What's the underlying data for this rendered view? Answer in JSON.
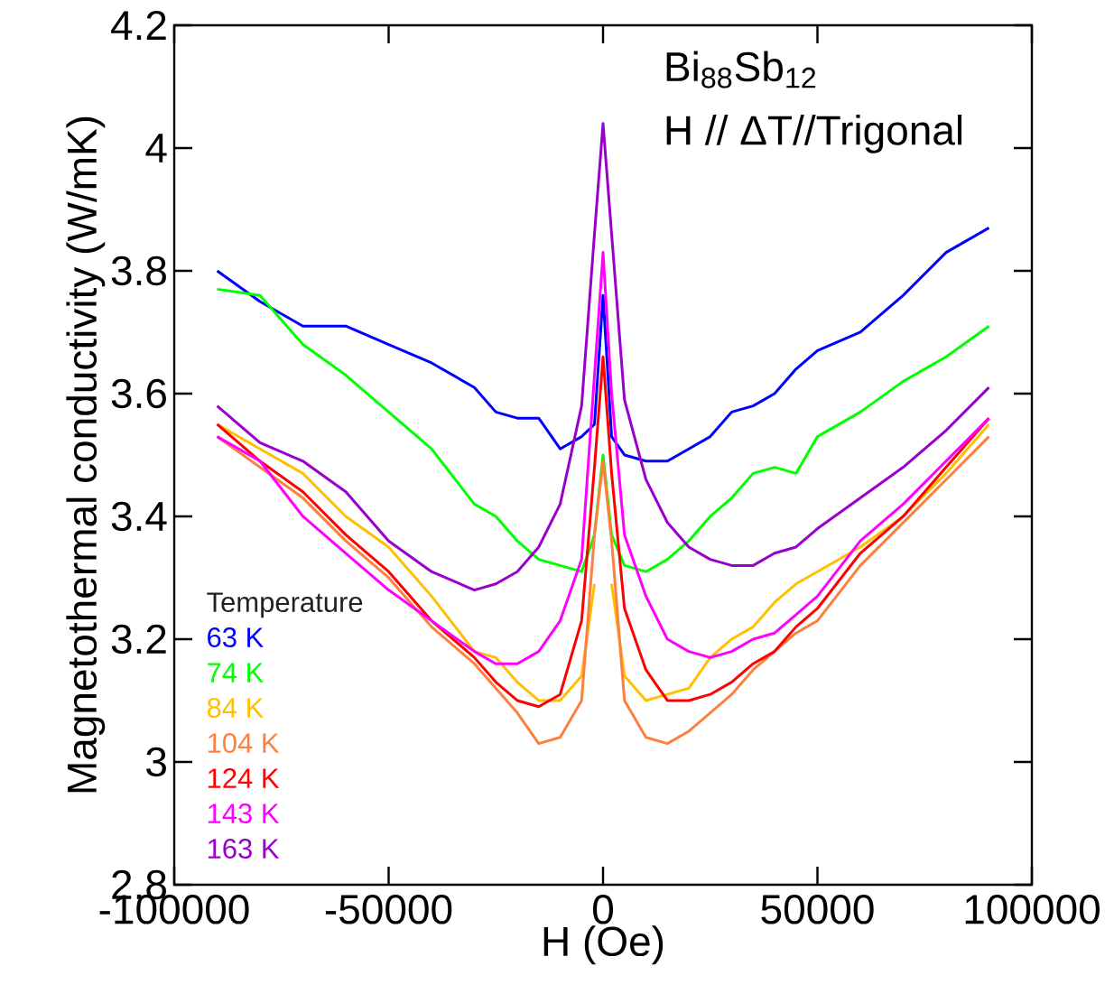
{
  "chart_data": {
    "type": "line",
    "xlabel": "H (Oe)",
    "ylabel": "Magnetothermal conductivity (W/mK)",
    "legend_title": "Temperature",
    "legend": "bottom left",
    "line_style": "solid",
    "annotations": [
      "Bi$_{88}$Sb$_{12}$",
      "H // ΔT//Trigonal"
    ],
    "xlim": [
      -100000,
      100000
    ],
    "xticks": [
      -100000,
      -50000,
      0,
      50000,
      100000
    ],
    "ylim": [
      2.8,
      4.2
    ],
    "yticks": [
      2.8,
      3,
      3.2,
      3.4,
      3.6,
      3.8,
      4,
      4.2
    ],
    "x": [
      -90000,
      -80000,
      -70000,
      -60000,
      -50000,
      -40000,
      -30000,
      -25000,
      -20000,
      -15000,
      -10000,
      -5000,
      -2000,
      0,
      2000,
      5000,
      10000,
      15000,
      20000,
      25000,
      30000,
      35000,
      40000,
      45000,
      50000,
      60000,
      70000,
      80000,
      90000
    ],
    "series": [
      {
        "name": "63 K",
        "color": "#0000ff",
        "values": [
          3.8,
          3.75,
          3.71,
          3.71,
          3.68,
          3.65,
          3.61,
          3.57,
          3.56,
          3.56,
          3.51,
          3.53,
          3.55,
          3.76,
          3.53,
          3.5,
          3.49,
          3.49,
          3.51,
          3.53,
          3.57,
          3.58,
          3.6,
          3.64,
          3.67,
          3.7,
          3.76,
          3.83,
          3.87
        ]
      },
      {
        "name": "74 K",
        "color": "#00ff00",
        "values": [
          3.77,
          3.76,
          3.68,
          3.63,
          3.57,
          3.51,
          3.42,
          3.4,
          3.36,
          3.33,
          3.32,
          3.31,
          3.37,
          3.5,
          3.37,
          3.32,
          3.31,
          3.33,
          3.36,
          3.4,
          3.43,
          3.47,
          3.48,
          3.47,
          3.53,
          3.57,
          3.62,
          3.66,
          3.71
        ]
      },
      {
        "name": "84 K",
        "color": "#ffc000",
        "values": [
          3.55,
          3.51,
          3.47,
          3.4,
          3.35,
          3.27,
          3.18,
          3.17,
          3.13,
          3.1,
          3.1,
          3.14,
          3.29,
          null,
          3.29,
          3.14,
          3.1,
          3.11,
          3.12,
          3.17,
          3.2,
          3.22,
          3.26,
          3.29,
          3.31,
          3.35,
          3.4,
          3.47,
          3.55
        ]
      },
      {
        "name": "104 K",
        "color": "#ff7f3f",
        "values": [
          3.53,
          3.48,
          3.43,
          3.36,
          3.3,
          3.22,
          3.16,
          3.12,
          3.08,
          3.03,
          3.04,
          3.1,
          3.37,
          3.49,
          3.36,
          3.1,
          3.04,
          3.03,
          3.05,
          3.08,
          3.11,
          3.15,
          3.18,
          3.21,
          3.23,
          3.32,
          3.39,
          3.46,
          3.53
        ]
      },
      {
        "name": "124 K",
        "color": "#ff0000",
        "values": [
          3.55,
          3.49,
          3.44,
          3.37,
          3.31,
          3.23,
          3.17,
          3.13,
          3.1,
          3.09,
          3.11,
          3.23,
          3.48,
          3.66,
          3.47,
          3.25,
          3.15,
          3.1,
          3.1,
          3.11,
          3.13,
          3.16,
          3.18,
          3.22,
          3.25,
          3.34,
          3.4,
          3.48,
          3.56
        ]
      },
      {
        "name": "143 K",
        "color": "#ff00ff",
        "values": [
          3.53,
          3.49,
          3.4,
          3.34,
          3.28,
          3.23,
          3.18,
          3.16,
          3.16,
          3.18,
          3.23,
          3.33,
          3.63,
          3.83,
          3.6,
          3.37,
          3.27,
          3.2,
          3.18,
          3.17,
          3.18,
          3.2,
          3.21,
          3.24,
          3.27,
          3.36,
          3.42,
          3.49,
          3.56
        ]
      },
      {
        "name": "163 K",
        "color": "#9900cc",
        "values": [
          3.58,
          3.52,
          3.49,
          3.44,
          3.36,
          3.31,
          3.28,
          3.29,
          3.31,
          3.35,
          3.42,
          3.58,
          3.86,
          4.04,
          3.86,
          3.59,
          3.46,
          3.39,
          3.35,
          3.33,
          3.32,
          3.32,
          3.34,
          3.35,
          3.38,
          3.43,
          3.48,
          3.54,
          3.61
        ]
      }
    ]
  }
}
